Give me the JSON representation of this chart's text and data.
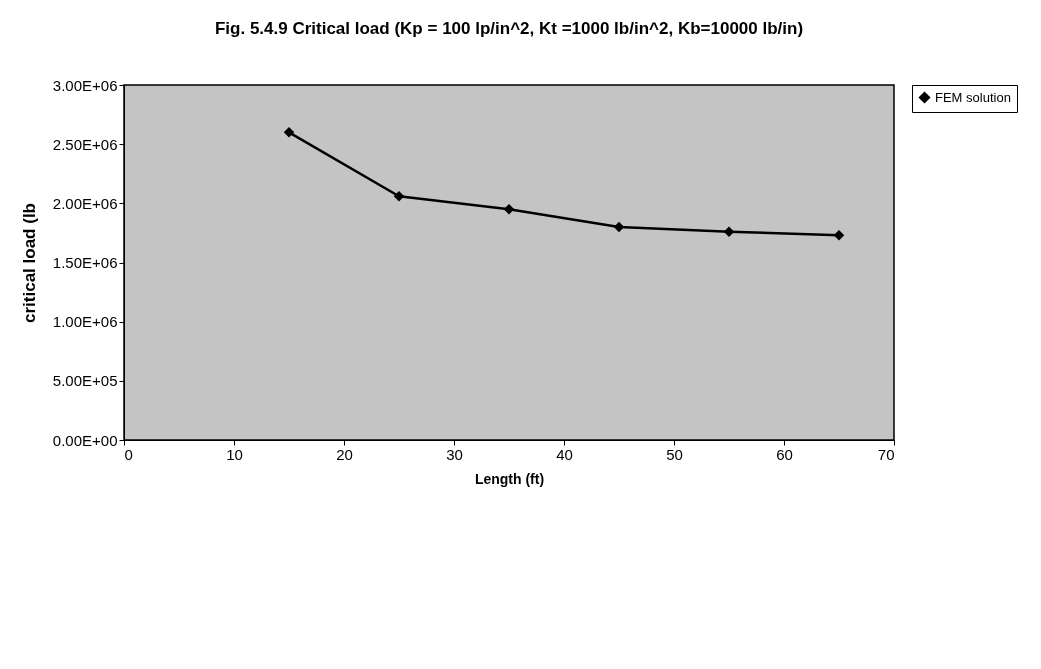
{
  "chart_data": {
    "type": "line",
    "title": "Fig. 5.4.9 Critical load (Kp = 100 lp/in^2, Kt =1000 lb/in^2, Kb=10000 lb/in)",
    "xlabel": "Length (ft)",
    "ylabel": "critical load (lb",
    "x": [
      15,
      25,
      35,
      45,
      55,
      65
    ],
    "series": [
      {
        "name": "FEM solution",
        "color": "#000000",
        "values": [
          2600000,
          2060000,
          1950000,
          1800000,
          1760000,
          1730000
        ]
      }
    ],
    "xlim": [
      0,
      70
    ],
    "xticks": [
      0,
      10,
      20,
      30,
      40,
      50,
      60,
      70
    ],
    "ylim": [
      0,
      3000000
    ],
    "yticks": [
      {
        "value": 0,
        "label": "0.00E+00"
      },
      {
        "value": 500000,
        "label": "5.00E+05"
      },
      {
        "value": 1000000,
        "label": "1.00E+06"
      },
      {
        "value": 1500000,
        "label": "1.50E+06"
      },
      {
        "value": 2000000,
        "label": "2.00E+06"
      },
      {
        "value": 2500000,
        "label": "2.50E+06"
      },
      {
        "value": 3000000,
        "label": "3.00E+06"
      }
    ],
    "grid": false,
    "legend": "right",
    "marker": "diamond",
    "line_style": "solid"
  }
}
